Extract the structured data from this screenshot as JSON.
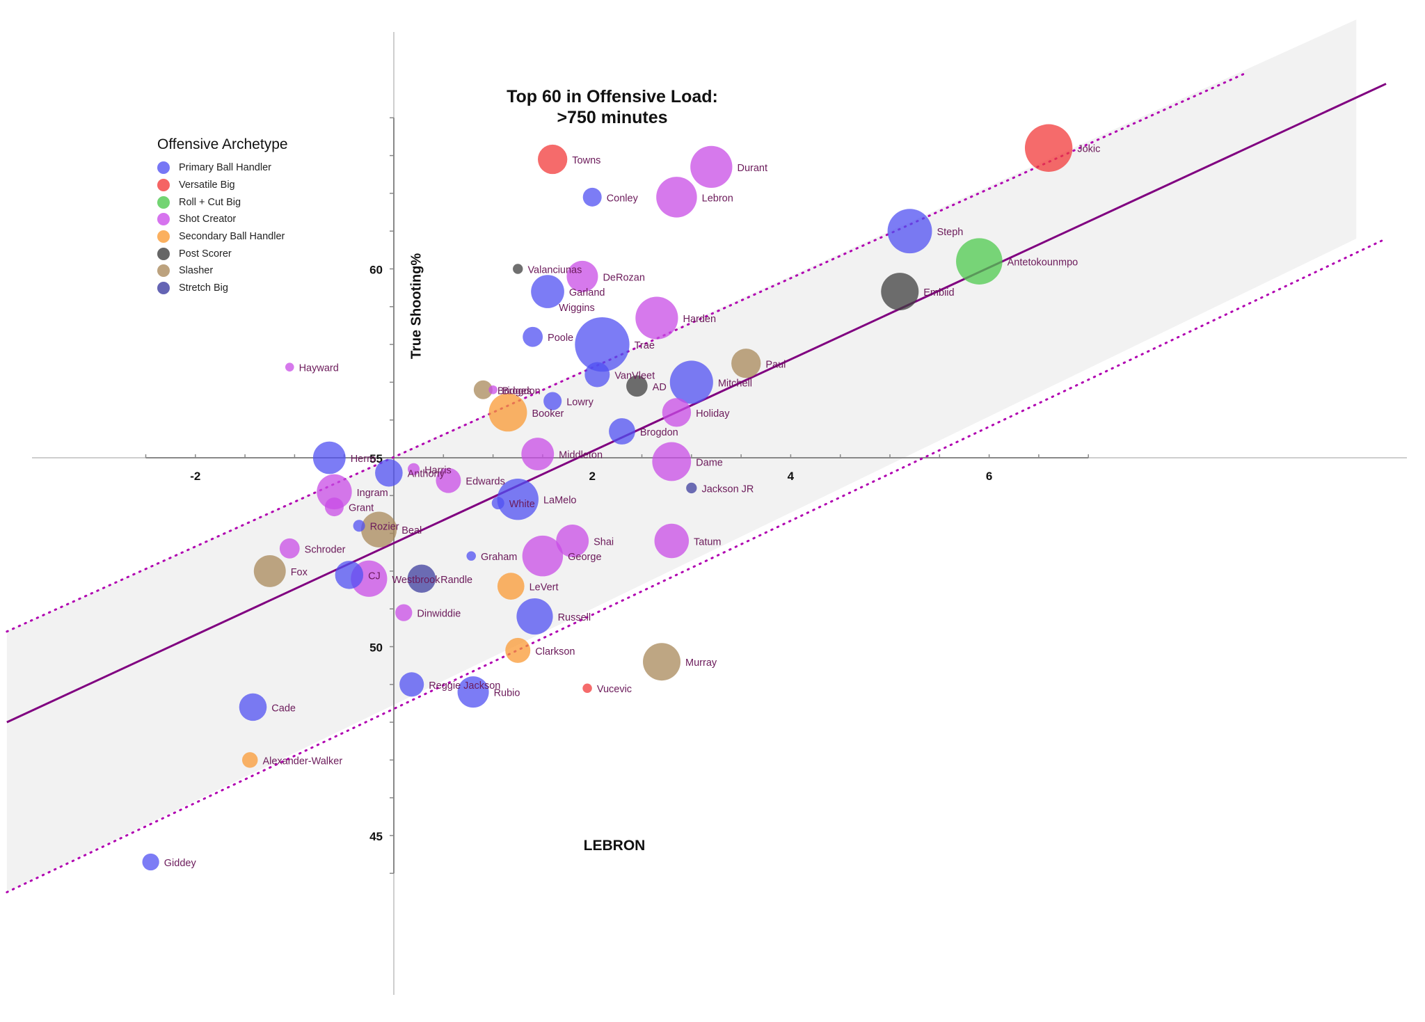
{
  "chart_data": {
    "type": "scatter",
    "title_line1": "Top 60 in Offensive  Load:",
    "title_line2": ">750 minutes",
    "xlabel": "LEBRON",
    "ylabel": "True Shooting%",
    "xlim": [
      -3.9,
      10.0
    ],
    "ylim": [
      41.1,
      64.6
    ],
    "x_ticks": [
      -2,
      2,
      4,
      6
    ],
    "y_ticks": [
      45,
      50,
      55,
      60
    ],
    "grid": false,
    "legend_title": "Offensive Archetype",
    "legend_position": "upper-left",
    "categories": [
      {
        "name": "Primary Ball Handler",
        "color": "#5050f2"
      },
      {
        "name": "Versatile Big",
        "color": "#f23a3a"
      },
      {
        "name": "Roll + Cut Big",
        "color": "#4dc94d"
      },
      {
        "name": "Shot Creator",
        "color": "#c84ce6"
      },
      {
        "name": "Secondary Ball Handler",
        "color": "#fa9a34"
      },
      {
        "name": "Post Scorer",
        "color": "#3f3f3f"
      },
      {
        "name": "Slasher",
        "color": "#a8885a"
      },
      {
        "name": "Stretch Big",
        "color": "#3d3d9e"
      }
    ],
    "trend_line": {
      "x": [
        -3.9,
        10.0
      ],
      "y": [
        48.0,
        64.9
      ]
    },
    "upper_band": {
      "x": [
        -3.9,
        8.6
      ],
      "y": [
        50.4,
        65.2
      ]
    },
    "lower_band": {
      "x": [
        -3.9,
        10.0
      ],
      "y": [
        43.5,
        60.8
      ]
    },
    "shaded_band": {
      "x_end": 9.7,
      "upper_y_end": 64.9,
      "lower_y_end": 60.8
    },
    "points": [
      {
        "label": "Jokic",
        "x": 6.6,
        "y": 63.2,
        "size": 7.6,
        "category": "Versatile Big"
      },
      {
        "label": "Towns",
        "x": 1.6,
        "y": 62.9,
        "size": 4.7,
        "category": "Versatile Big"
      },
      {
        "label": "Durant",
        "x": 3.2,
        "y": 62.7,
        "size": 6.7,
        "category": "Shot Creator"
      },
      {
        "label": "Conley",
        "x": 2.0,
        "y": 61.9,
        "size": 3.0,
        "category": "Primary Ball Handler"
      },
      {
        "label": "Lebron",
        "x": 2.85,
        "y": 61.9,
        "size": 6.5,
        "category": "Shot Creator"
      },
      {
        "label": "Steph",
        "x": 5.2,
        "y": 61.0,
        "size": 7.1,
        "category": "Primary Ball Handler"
      },
      {
        "label": "Antetokounmpo",
        "x": 5.9,
        "y": 60.2,
        "size": 7.4,
        "category": "Roll + Cut Big"
      },
      {
        "label": "Valanciunas",
        "x": 1.25,
        "y": 60.0,
        "size": 1.6,
        "category": "Post Scorer"
      },
      {
        "label": "DeRozan",
        "x": 1.9,
        "y": 59.8,
        "size": 5.0,
        "category": "Shot Creator"
      },
      {
        "label": "Garland",
        "x": 1.55,
        "y": 59.4,
        "size": 5.3,
        "category": "Primary Ball Handler"
      },
      {
        "label": "Embiid",
        "x": 5.1,
        "y": 59.4,
        "size": 6.0,
        "category": "Post Scorer"
      },
      {
        "label": "Wiggins",
        "x": 1.6,
        "y": 59.0,
        "size": 0.0,
        "category": "Slasher"
      },
      {
        "label": "Harden",
        "x": 2.65,
        "y": 58.7,
        "size": 6.8,
        "category": "Shot Creator"
      },
      {
        "label": "Poole",
        "x": 1.4,
        "y": 58.2,
        "size": 3.2,
        "category": "Primary Ball Handler"
      },
      {
        "label": "Trae",
        "x": 2.1,
        "y": 58.0,
        "size": 8.7,
        "category": "Primary Ball Handler"
      },
      {
        "label": "Hayward",
        "x": -1.05,
        "y": 57.4,
        "size": 1.4,
        "category": "Shot Creator"
      },
      {
        "label": "Paul",
        "x": 3.55,
        "y": 57.5,
        "size": 4.7,
        "category": "Slasher"
      },
      {
        "label": "VanVleet",
        "x": 2.05,
        "y": 57.2,
        "size": 4.0,
        "category": "Primary Ball Handler"
      },
      {
        "label": "Mitchell",
        "x": 3.0,
        "y": 57.0,
        "size": 6.9,
        "category": "Primary Ball Handler"
      },
      {
        "label": "AD",
        "x": 2.45,
        "y": 56.9,
        "size": 3.4,
        "category": "Post Scorer"
      },
      {
        "label": "Bridges",
        "x": 0.9,
        "y": 56.8,
        "size": 3.0,
        "category": "Slasher"
      },
      {
        "label": "Brogdon",
        "x": 1.0,
        "y": 56.8,
        "size": 1.4,
        "category": "Shot Creator"
      },
      {
        "label": "Lowry",
        "x": 1.6,
        "y": 56.5,
        "size": 2.9,
        "category": "Primary Ball Handler"
      },
      {
        "label": "Booker",
        "x": 1.15,
        "y": 56.2,
        "size": 6.1,
        "category": "Secondary Ball Handler"
      },
      {
        "label": "Holiday",
        "x": 2.85,
        "y": 56.2,
        "size": 4.6,
        "category": "Shot Creator"
      },
      {
        "label": "Brogdon",
        "x": 2.3,
        "y": 55.7,
        "size": 4.2,
        "category": "Primary Ball Handler"
      },
      {
        "label": "Middleton",
        "x": 1.45,
        "y": 55.1,
        "size": 5.2,
        "category": "Shot Creator"
      },
      {
        "label": "Herro",
        "x": -0.65,
        "y": 55.0,
        "size": 5.2,
        "category": "Primary Ball Handler"
      },
      {
        "label": "Dame",
        "x": 2.8,
        "y": 54.9,
        "size": 6.2,
        "category": "Shot Creator"
      },
      {
        "label": "Harris",
        "x": 0.2,
        "y": 54.7,
        "size": 1.9,
        "category": "Shot Creator"
      },
      {
        "label": "Anthony",
        "x": -0.05,
        "y": 54.6,
        "size": 4.4,
        "category": "Primary Ball Handler"
      },
      {
        "label": "Edwards",
        "x": 0.55,
        "y": 54.4,
        "size": 4.0,
        "category": "Shot Creator"
      },
      {
        "label": "Jackson JR",
        "x": 3.0,
        "y": 54.2,
        "size": 1.7,
        "category": "Stretch Big"
      },
      {
        "label": "Ingram",
        "x": -0.6,
        "y": 54.1,
        "size": 5.6,
        "category": "Shot Creator"
      },
      {
        "label": "LaMelo",
        "x": 1.25,
        "y": 53.9,
        "size": 6.6,
        "category": "Primary Ball Handler"
      },
      {
        "label": "White",
        "x": 1.05,
        "y": 53.8,
        "size": 2.0,
        "category": "Primary Ball Handler"
      },
      {
        "label": "Grant",
        "x": -0.6,
        "y": 53.7,
        "size": 3.0,
        "category": "Shot Creator"
      },
      {
        "label": "Rozier",
        "x": -0.35,
        "y": 53.2,
        "size": 1.9,
        "category": "Primary Ball Handler"
      },
      {
        "label": "Beal",
        "x": -0.15,
        "y": 53.1,
        "size": 5.7,
        "category": "Slasher"
      },
      {
        "label": "Shai",
        "x": 1.8,
        "y": 52.8,
        "size": 5.2,
        "category": "Shot Creator"
      },
      {
        "label": "Tatum",
        "x": 2.8,
        "y": 52.8,
        "size": 5.5,
        "category": "Shot Creator"
      },
      {
        "label": "Schroder",
        "x": -1.05,
        "y": 52.6,
        "size": 3.2,
        "category": "Shot Creator"
      },
      {
        "label": "Graham",
        "x": 0.78,
        "y": 52.4,
        "size": 1.5,
        "category": "Primary Ball Handler"
      },
      {
        "label": "George",
        "x": 1.5,
        "y": 52.4,
        "size": 6.5,
        "category": "Shot Creator"
      },
      {
        "label": "Fox",
        "x": -1.25,
        "y": 52.0,
        "size": 5.1,
        "category": "Slasher"
      },
      {
        "label": "CJ",
        "x": -0.45,
        "y": 51.9,
        "size": 4.5,
        "category": "Primary Ball Handler"
      },
      {
        "label": "Westbrook",
        "x": -0.25,
        "y": 51.8,
        "size": 5.8,
        "category": "Shot Creator"
      },
      {
        "label": "Randle",
        "x": 0.28,
        "y": 51.8,
        "size": 4.5,
        "category": "Stretch Big"
      },
      {
        "label": "LeVert",
        "x": 1.18,
        "y": 51.6,
        "size": 4.3,
        "category": "Secondary Ball Handler"
      },
      {
        "label": "Dinwiddie",
        "x": 0.1,
        "y": 50.9,
        "size": 2.7,
        "category": "Shot Creator"
      },
      {
        "label": "Russell",
        "x": 1.42,
        "y": 50.8,
        "size": 5.8,
        "category": "Primary Ball Handler"
      },
      {
        "label": "Clarkson",
        "x": 1.25,
        "y": 49.9,
        "size": 4.0,
        "category": "Secondary Ball Handler"
      },
      {
        "label": "Murray",
        "x": 2.7,
        "y": 49.6,
        "size": 6.0,
        "category": "Slasher"
      },
      {
        "label": "Reggie Jackson",
        "x": 0.18,
        "y": 49.0,
        "size": 3.9,
        "category": "Primary Ball Handler"
      },
      {
        "label": "Rubio",
        "x": 0.8,
        "y": 48.8,
        "size": 5.0,
        "category": "Primary Ball Handler"
      },
      {
        "label": "Vucevic",
        "x": 1.95,
        "y": 48.9,
        "size": 1.5,
        "category": "Versatile Big"
      },
      {
        "label": "Cade",
        "x": -1.42,
        "y": 48.4,
        "size": 4.4,
        "category": "Primary Ball Handler"
      },
      {
        "label": "Alexander-Walker",
        "x": -1.45,
        "y": 47.0,
        "size": 2.5,
        "category": "Secondary Ball Handler"
      },
      {
        "label": "Giddey",
        "x": -2.45,
        "y": 44.3,
        "size": 2.7,
        "category": "Primary Ball Handler"
      }
    ]
  }
}
